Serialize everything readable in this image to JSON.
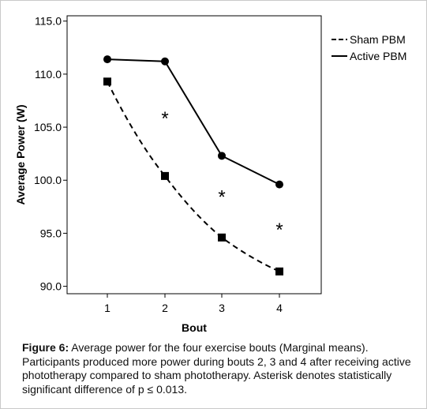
{
  "chart_data": {
    "type": "line",
    "xlabel": "Bout",
    "ylabel": "Average Power (W)",
    "categories": [
      "1",
      "2",
      "3",
      "4"
    ],
    "ylim": [
      89.3,
      115.5
    ],
    "yticks": [
      "90.0",
      "95.0",
      "100.0",
      "105.0",
      "110.0",
      "115.0"
    ],
    "grid": false,
    "legend_placement": "top-right",
    "series": [
      {
        "name": "Sham PBM",
        "values": [
          109.3,
          100.4,
          94.6,
          91.4
        ],
        "line": "dashed",
        "marker": "square"
      },
      {
        "name": "Active PBM",
        "values": [
          111.4,
          111.2,
          102.3,
          99.6
        ],
        "line": "solid",
        "marker": "circle"
      }
    ],
    "annotations": [
      {
        "text": "*",
        "x": "2",
        "y": 106.2
      },
      {
        "text": "*",
        "x": "3",
        "y": 98.8
      },
      {
        "text": "*",
        "x": "4",
        "y": 95.7
      }
    ]
  },
  "caption": {
    "label": "Figure 6:",
    "text": " Average power for the four exercise bouts (Marginal means). Participants produced more power during bouts 2, 3 and 4 after receiving active phototherapy compared to sham phototherapy. Asterisk denotes statistically significant difference of p ≤ 0.013."
  }
}
